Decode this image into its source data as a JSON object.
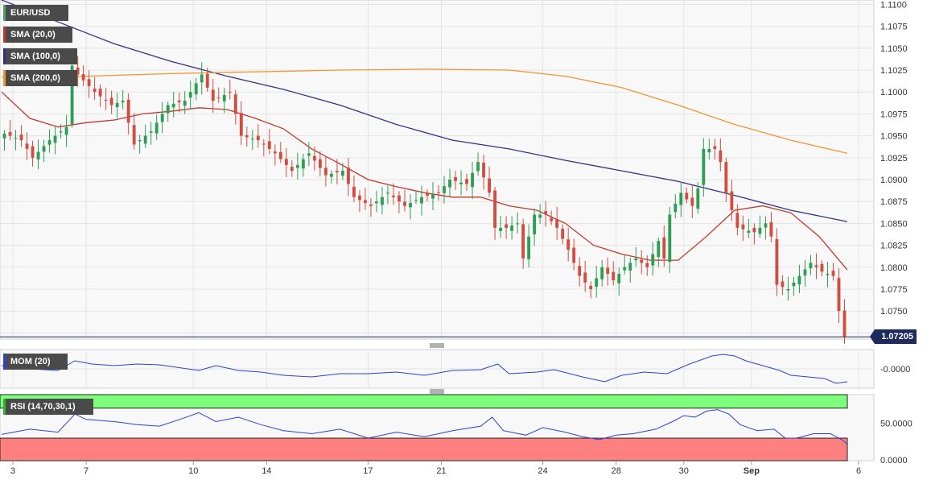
{
  "chart_data": [
    {
      "type": "candlestick",
      "legend": [
        {
          "label": "EUR/USD",
          "color": "#4aa36a"
        },
        {
          "label": "SMA (20,0)",
          "color": "#c0392b"
        },
        {
          "label": "SMA (100,0)",
          "color": "#34308a"
        },
        {
          "label": "SMA (200,0)",
          "color": "#f0962c"
        }
      ],
      "y_ticks": [
        "1.1100",
        "1.1075",
        "1.1050",
        "1.1025",
        "1.1000",
        "1.0975",
        "1.0950",
        "1.0925",
        "1.0900",
        "1.0875",
        "1.0850",
        "1.0825",
        "1.0800",
        "1.0775",
        "1.0750",
        "1.0725"
      ],
      "y_range": [
        1.0718,
        1.1105
      ],
      "last_price_label": "1.07205",
      "last_price": 1.07205,
      "x_labels": [
        {
          "label": "3",
          "idx": 2
        },
        {
          "label": "7",
          "idx": 15
        },
        {
          "label": "10",
          "idx": 34
        },
        {
          "label": "14",
          "idx": 47
        },
        {
          "label": "17",
          "idx": 65
        },
        {
          "label": "21",
          "idx": 78
        },
        {
          "label": "24",
          "idx": 96
        },
        {
          "label": "28",
          "idx": 109
        },
        {
          "label": "30",
          "idx": 121
        },
        {
          "label": "Sep",
          "idx": 133
        },
        {
          "label": "6",
          "idx": 152
        }
      ],
      "candle_count": 150,
      "close_path": [
        [
          0,
          1.0955
        ],
        [
          4,
          1.0945
        ],
        [
          6,
          1.0925
        ],
        [
          9,
          1.0945
        ],
        [
          12,
          1.096
        ],
        [
          13,
          1.103
        ],
        [
          14,
          1.102
        ],
        [
          17,
          1.1
        ],
        [
          20,
          1.0985
        ],
        [
          22,
          1.099
        ],
        [
          24,
          1.094
        ],
        [
          27,
          1.0955
        ],
        [
          30,
          1.0985
        ],
        [
          33,
          1.099
        ],
        [
          36,
          1.102
        ],
        [
          38,
          1.099
        ],
        [
          41,
          1.1
        ],
        [
          43,
          1.095
        ],
        [
          46,
          1.0945
        ],
        [
          49,
          1.093
        ],
        [
          52,
          1.091
        ],
        [
          55,
          1.093
        ],
        [
          58,
          1.0905
        ],
        [
          61,
          1.091
        ],
        [
          63,
          1.088
        ],
        [
          66,
          1.087
        ],
        [
          69,
          1.0885
        ],
        [
          72,
          1.087
        ],
        [
          75,
          1.088
        ],
        [
          78,
          1.0885
        ],
        [
          80,
          1.09
        ],
        [
          83,
          1.0895
        ],
        [
          85,
          1.092
        ],
        [
          87,
          1.0885
        ],
        [
          88,
          1.0845
        ],
        [
          90,
          1.0845
        ],
        [
          92,
          1.085
        ],
        [
          93,
          1.081
        ],
        [
          95,
          1.086
        ],
        [
          97,
          1.086
        ],
        [
          99,
          1.0845
        ],
        [
          101,
          1.082
        ],
        [
          103,
          1.079
        ],
        [
          105,
          1.0775
        ],
        [
          107,
          1.08
        ],
        [
          109,
          1.0785
        ],
        [
          111,
          1.08
        ],
        [
          113,
          1.081
        ],
        [
          115,
          1.08
        ],
        [
          117,
          1.083
        ],
        [
          118,
          1.081
        ],
        [
          119,
          1.086
        ],
        [
          121,
          1.0885
        ],
        [
          123,
          1.087
        ],
        [
          124,
          1.089
        ],
        [
          125,
          1.0935
        ],
        [
          127,
          1.0935
        ],
        [
          128,
          1.092
        ],
        [
          129,
          1.0885
        ],
        [
          131,
          1.0845
        ],
        [
          134,
          1.084
        ],
        [
          136,
          1.085
        ],
        [
          137,
          1.0835
        ],
        [
          138,
          1.078
        ],
        [
          140,
          1.0775
        ],
        [
          142,
          1.079
        ],
        [
          144,
          1.0805
        ],
        [
          146,
          1.0795
        ],
        [
          148,
          1.079
        ],
        [
          149,
          1.075
        ],
        [
          150,
          1.07205
        ]
      ],
      "series": [
        {
          "name": "SMA (20,0)",
          "color": "#c0392b",
          "points": [
            [
              0,
              1.1
            ],
            [
              5,
              1.097
            ],
            [
              10,
              1.096
            ],
            [
              15,
              1.0965
            ],
            [
              20,
              1.0968
            ],
            [
              25,
              1.0975
            ],
            [
              30,
              1.0978
            ],
            [
              35,
              1.0982
            ],
            [
              40,
              1.098
            ],
            [
              45,
              1.097
            ],
            [
              50,
              1.0958
            ],
            [
              55,
              1.0935
            ],
            [
              60,
              1.0918
            ],
            [
              65,
              1.09
            ],
            [
              70,
              1.0892
            ],
            [
              75,
              1.0885
            ],
            [
              80,
              1.088
            ],
            [
              85,
              1.088
            ],
            [
              90,
              1.087
            ],
            [
              95,
              1.0865
            ],
            [
              100,
              1.085
            ],
            [
              105,
              1.0825
            ],
            [
              110,
              1.0815
            ],
            [
              115,
              1.0808
            ],
            [
              120,
              1.0808
            ],
            [
              125,
              1.0835
            ],
            [
              130,
              1.0865
            ],
            [
              135,
              1.087
            ],
            [
              140,
              1.0862
            ],
            [
              145,
              1.0835
            ],
            [
              150,
              1.0797
            ]
          ]
        },
        {
          "name": "SMA (100,0)",
          "color": "#34308a",
          "points": [
            [
              0,
              1.1105
            ],
            [
              10,
              1.108
            ],
            [
              20,
              1.1055
            ],
            [
              30,
              1.1035
            ],
            [
              40,
              1.1018
            ],
            [
              50,
              1.1003
            ],
            [
              60,
              1.0985
            ],
            [
              70,
              1.0963
            ],
            [
              80,
              1.0945
            ],
            [
              90,
              1.0935
            ],
            [
              100,
              1.0922
            ],
            [
              110,
              1.091
            ],
            [
              120,
              1.0898
            ],
            [
              130,
              1.0882
            ],
            [
              140,
              1.0865
            ],
            [
              150,
              1.0852
            ]
          ]
        },
        {
          "name": "SMA (200,0)",
          "color": "#f0962c",
          "points": [
            [
              0,
              1.1017
            ],
            [
              15,
              1.1018
            ],
            [
              30,
              1.1021
            ],
            [
              45,
              1.1023
            ],
            [
              60,
              1.1025
            ],
            [
              75,
              1.1026
            ],
            [
              90,
              1.1025
            ],
            [
              100,
              1.1018
            ],
            [
              110,
              1.1005
            ],
            [
              120,
              1.0985
            ],
            [
              130,
              1.0963
            ],
            [
              140,
              1.0945
            ],
            [
              150,
              1.093
            ]
          ]
        }
      ]
    },
    {
      "type": "line",
      "legend": [
        {
          "label": "MOM (20)",
          "color": "#2c42d6"
        }
      ],
      "y_ticks": [
        "-0.0000"
      ],
      "y_range": [
        -0.024,
        0.024
      ],
      "series": [
        {
          "name": "MOM (20)",
          "color": "#2c42d6",
          "points": [
            [
              0,
              0.004
            ],
            [
              5,
              0.0
            ],
            [
              10,
              -0.002
            ],
            [
              13,
              0.01
            ],
            [
              16,
              0.006
            ],
            [
              20,
              0.004
            ],
            [
              24,
              0.006
            ],
            [
              28,
              0.005
            ],
            [
              32,
              0.001
            ],
            [
              35,
              -0.002
            ],
            [
              38,
              0.004
            ],
            [
              42,
              -0.002
            ],
            [
              46,
              -0.004
            ],
            [
              50,
              -0.008
            ],
            [
              55,
              -0.01
            ],
            [
              60,
              -0.006
            ],
            [
              65,
              -0.006
            ],
            [
              70,
              -0.004
            ],
            [
              75,
              -0.008
            ],
            [
              80,
              -0.002
            ],
            [
              85,
              -0.001
            ],
            [
              88,
              0.006
            ],
            [
              90,
              -0.006
            ],
            [
              95,
              -0.004
            ],
            [
              98,
              -0.001
            ],
            [
              103,
              -0.01
            ],
            [
              107,
              -0.016
            ],
            [
              110,
              -0.008
            ],
            [
              114,
              -0.004
            ],
            [
              118,
              -0.006
            ],
            [
              122,
              0.006
            ],
            [
              126,
              0.016
            ],
            [
              128,
              0.018
            ],
            [
              130,
              0.016
            ],
            [
              132,
              0.01
            ],
            [
              135,
              0.004
            ],
            [
              138,
              -0.002
            ],
            [
              140,
              -0.008
            ],
            [
              143,
              -0.01
            ],
            [
              146,
              -0.012
            ],
            [
              148,
              -0.018
            ],
            [
              150,
              -0.016
            ]
          ]
        }
      ]
    },
    {
      "type": "line",
      "legend": [
        {
          "label": "RSI (14,70,30,1)",
          "color": "#2db52d"
        }
      ],
      "y_ticks": [
        "50.0000",
        "0.0000"
      ],
      "y_range": [
        0,
        88
      ],
      "overbought_zone": [
        70,
        100
      ],
      "oversold_zone": [
        0,
        30
      ],
      "series": [
        {
          "name": "RSI (14,70,30,1)",
          "color": "#2c42d6",
          "points": [
            [
              0,
              35
            ],
            [
              5,
              42
            ],
            [
              10,
              38
            ],
            [
              13,
              62
            ],
            [
              15,
              55
            ],
            [
              20,
              52
            ],
            [
              24,
              48
            ],
            [
              28,
              46
            ],
            [
              32,
              56
            ],
            [
              35,
              64
            ],
            [
              38,
              52
            ],
            [
              42,
              58
            ],
            [
              46,
              48
            ],
            [
              50,
              40
            ],
            [
              55,
              36
            ],
            [
              60,
              42
            ],
            [
              65,
              30
            ],
            [
              70,
              38
            ],
            [
              75,
              32
            ],
            [
              80,
              40
            ],
            [
              85,
              46
            ],
            [
              87,
              58
            ],
            [
              89,
              40
            ],
            [
              93,
              34
            ],
            [
              96,
              44
            ],
            [
              100,
              38
            ],
            [
              103,
              32
            ],
            [
              106,
              28
            ],
            [
              109,
              34
            ],
            [
              112,
              36
            ],
            [
              116,
              42
            ],
            [
              119,
              52
            ],
            [
              121,
              60
            ],
            [
              123,
              58
            ],
            [
              125,
              66
            ],
            [
              127,
              68
            ],
            [
              129,
              62
            ],
            [
              131,
              48
            ],
            [
              134,
              40
            ],
            [
              137,
              42
            ],
            [
              139,
              30
            ],
            [
              141,
              30
            ],
            [
              144,
              36
            ],
            [
              147,
              36
            ],
            [
              149,
              28
            ],
            [
              150,
              22
            ]
          ]
        }
      ]
    }
  ]
}
